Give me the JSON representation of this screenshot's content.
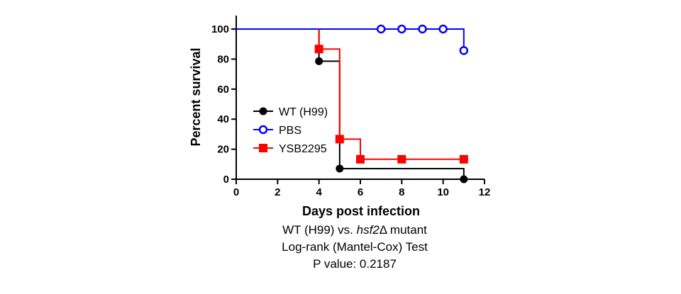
{
  "chart_data": {
    "type": "line",
    "subtype": "kaplan-meier-step",
    "xlabel": "Days post infection",
    "ylabel": "Percent survival",
    "xlim": [
      0,
      12
    ],
    "ylim": [
      0,
      100
    ],
    "xticks": [
      0,
      2,
      4,
      6,
      8,
      10,
      12
    ],
    "yticks": [
      0,
      20,
      40,
      60,
      80,
      100
    ],
    "grid": false,
    "legend_position": "left-middle",
    "series": [
      {
        "name": "WT (H99)",
        "color": "#000000",
        "marker": "filled-circle",
        "steps": [
          [
            0,
            100
          ],
          [
            4,
            100
          ],
          [
            4,
            78.6
          ],
          [
            5,
            78.6
          ],
          [
            5,
            7.1
          ],
          [
            11,
            7.1
          ],
          [
            11,
            0
          ],
          [
            11.7,
            0
          ]
        ],
        "points": [
          [
            4,
            78.6
          ],
          [
            5,
            7.1
          ],
          [
            11,
            0
          ]
        ]
      },
      {
        "name": "PBS",
        "color": "#0000ff",
        "marker": "open-circle",
        "steps": [
          [
            0,
            100
          ],
          [
            11,
            100
          ],
          [
            11,
            85.7
          ]
        ],
        "points": [
          [
            7,
            100
          ],
          [
            8,
            100
          ],
          [
            9,
            100
          ],
          [
            10,
            100
          ],
          [
            11,
            85.7
          ]
        ]
      },
      {
        "name": "YSB2295",
        "color": "#ff0000",
        "marker": "filled-square",
        "steps": [
          [
            4,
            100
          ],
          [
            4,
            86.7
          ],
          [
            5,
            86.7
          ],
          [
            5,
            26.7
          ],
          [
            6,
            26.7
          ],
          [
            6,
            13.3
          ],
          [
            11,
            13.3
          ]
        ],
        "points": [
          [
            4,
            86.7
          ],
          [
            5,
            26.7
          ],
          [
            6,
            13.3
          ],
          [
            8,
            13.3
          ],
          [
            11,
            13.3
          ]
        ]
      }
    ]
  },
  "caption": {
    "line1_prefix": "WT (H99) vs. ",
    "line1_gene": "hsf2",
    "line1_suffix": "Δ mutant",
    "line2": "Log-rank (Mantel-Cox) Test",
    "line3": "P value: 0.2187"
  }
}
